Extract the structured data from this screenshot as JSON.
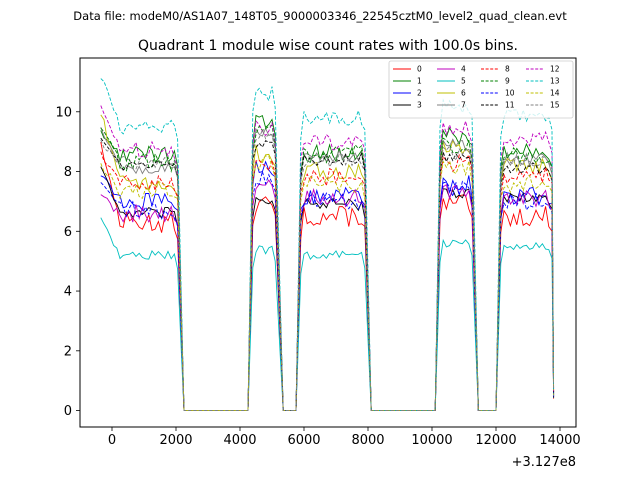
{
  "header_text": "Data file: modeM0/AS1A07_148T05_9000003346_22545cztM0_level2_quad_clean.evt",
  "chart_data": {
    "type": "line",
    "title": "Quadrant 1 module wise count rates with 100.0s bins.",
    "xlabel": "",
    "ylabel": "",
    "x_offset_label": "+3.127e8",
    "xlim": [
      -1000,
      14500
    ],
    "ylim": [
      -0.55,
      11.8
    ],
    "x_ticks": [
      0,
      2000,
      4000,
      6000,
      8000,
      10000,
      12000,
      14000
    ],
    "x_tick_labels": [
      "0",
      "2000",
      "4000",
      "6000",
      "8000",
      "10000",
      "12000",
      "14000"
    ],
    "y_ticks": [
      0,
      2,
      4,
      6,
      8,
      10
    ],
    "y_tick_labels": [
      "0",
      "2",
      "4",
      "6",
      "8",
      "10"
    ],
    "bin_size_s": 100,
    "segments": [
      [
        -350,
        2050
      ],
      [
        4400,
        5150
      ],
      [
        5900,
        7950
      ],
      [
        10250,
        11250
      ],
      [
        12150,
        13750
      ]
    ],
    "gaps": [
      [
        2250,
        4250
      ],
      [
        5350,
        5750
      ],
      [
        8100,
        10100
      ],
      [
        11450,
        12000
      ]
    ],
    "gap_value": 0,
    "legend": {
      "location": "upper right",
      "columns": 4
    },
    "series": [
      {
        "name": "0",
        "color": "#ff0000",
        "dash": "solid",
        "levels": [
          6.3,
          6.9,
          6.5,
          6.9,
          6.5
        ],
        "start": 9.0,
        "noise": 0.35
      },
      {
        "name": "1",
        "color": "#008000",
        "dash": "solid",
        "levels": [
          8.6,
          9.6,
          8.6,
          9.2,
          8.7
        ],
        "start": 9.3,
        "noise": 0.3
      },
      {
        "name": "2",
        "color": "#0000ff",
        "dash": "solid",
        "levels": [
          7.0,
          8.2,
          7.2,
          7.6,
          7.2
        ],
        "start": 8.0,
        "noise": 0.3
      },
      {
        "name": "3",
        "color": "#000000",
        "dash": "solid",
        "levels": [
          6.6,
          7.1,
          6.9,
          7.3,
          7.1
        ],
        "start": 8.2,
        "noise": 0.2
      },
      {
        "name": "4",
        "color": "#bf00bf",
        "dash": "solid",
        "levels": [
          6.6,
          7.5,
          7.1,
          7.3,
          7.1
        ],
        "start": 7.2,
        "noise": 0.3
      },
      {
        "name": "5",
        "color": "#00bfbf",
        "dash": "solid",
        "levels": [
          5.2,
          5.4,
          5.2,
          5.6,
          5.5
        ],
        "start": 6.4,
        "noise": 0.15
      },
      {
        "name": "6",
        "color": "#bfbf00",
        "dash": "solid",
        "levels": [
          7.6,
          8.6,
          8.0,
          8.8,
          8.2
        ],
        "start": 10.0,
        "noise": 0.3
      },
      {
        "name": "7",
        "color": "#808080",
        "dash": "solid",
        "levels": [
          8.1,
          9.3,
          8.5,
          8.9,
          8.4
        ],
        "start": 9.5,
        "noise": 0.2
      },
      {
        "name": "8",
        "color": "#ff0000",
        "dash": "dashed",
        "levels": [
          7.6,
          8.3,
          7.8,
          8.3,
          7.9
        ],
        "start": 8.6,
        "noise": 0.3
      },
      {
        "name": "9",
        "color": "#008000",
        "dash": "dashed",
        "levels": [
          8.3,
          9.3,
          8.6,
          8.9,
          8.5
        ],
        "start": 9.6,
        "noise": 0.3
      },
      {
        "name": "10",
        "color": "#0000ff",
        "dash": "dashed",
        "levels": [
          6.7,
          7.8,
          7.0,
          7.4,
          7.0
        ],
        "start": 7.7,
        "noise": 0.3
      },
      {
        "name": "11",
        "color": "#000000",
        "dash": "dashed",
        "levels": [
          8.2,
          9.0,
          8.4,
          8.5,
          8.1
        ],
        "start": 9.1,
        "noise": 0.2
      },
      {
        "name": "12",
        "color": "#bf00bf",
        "dash": "dashed",
        "levels": [
          8.7,
          9.5,
          9.0,
          9.4,
          9.1
        ],
        "start": 10.1,
        "noise": 0.3
      },
      {
        "name": "13",
        "color": "#00bfbf",
        "dash": "dashed",
        "levels": [
          9.5,
          10.6,
          9.8,
          10.2,
          9.9
        ],
        "start": 11.2,
        "noise": 0.25
      },
      {
        "name": "14",
        "color": "#bfbf00",
        "dash": "dashed",
        "levels": [
          7.4,
          8.3,
          7.6,
          8.1,
          7.6
        ],
        "start": 8.3,
        "noise": 0.3
      },
      {
        "name": "15",
        "color": "#808080",
        "dash": "dashed",
        "levels": [
          8.3,
          9.2,
          8.4,
          8.6,
          8.4
        ],
        "start": 9.0,
        "noise": 0.25
      }
    ]
  }
}
